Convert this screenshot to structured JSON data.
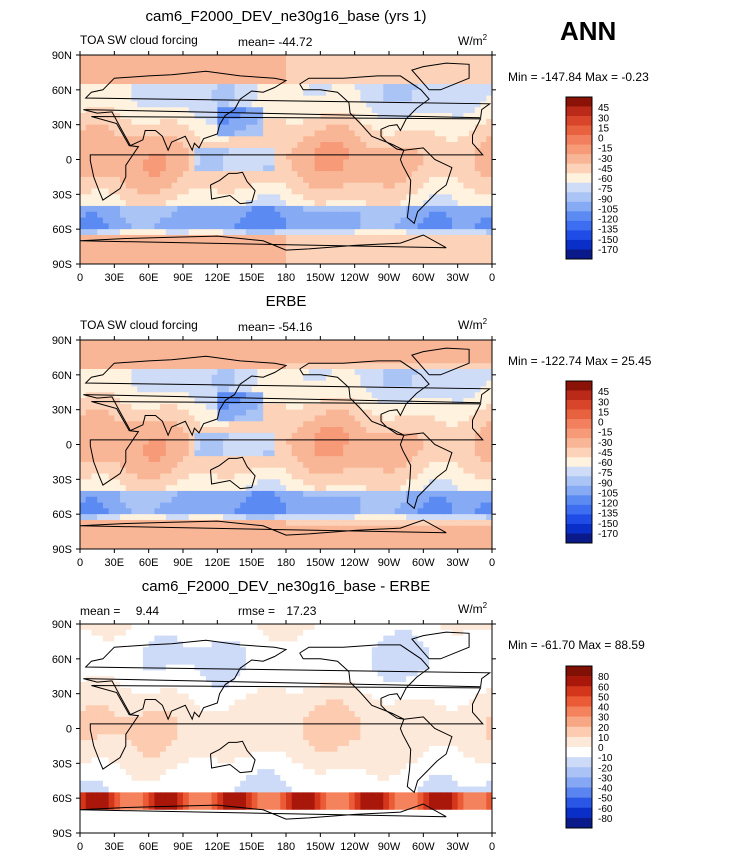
{
  "season": "ANN",
  "colors": {
    "land": "#000000",
    "frame": "#000000",
    "base_palette": [
      "#0a1a8a",
      "#0a2ec8",
      "#1f4ce6",
      "#3d6df0",
      "#5a8af2",
      "#86aaf4",
      "#aac4f6",
      "#cfdcf8",
      "#fff2de",
      "#fcd2b8",
      "#f9b696",
      "#f69a78",
      "#f27f5d",
      "#e8623f",
      "#d8452a",
      "#bb2a18",
      "#8a1207"
    ],
    "diff_palette": [
      "#0a1a8a",
      "#0a2ec8",
      "#2a56e6",
      "#5a84f0",
      "#86a8f4",
      "#aac2f6",
      "#cddbf8",
      "#ffffff",
      "#fde9d9",
      "#fccbb0",
      "#f8a784",
      "#f4825c",
      "#ea5b36",
      "#d4361c",
      "#a8170a",
      "#801004"
    ]
  },
  "panels": [
    {
      "title": "cam6_F2000_DEV_ne30g16_base (yrs 1)",
      "left_label": "TOA SW cloud forcing",
      "stat_label": "mean=",
      "stat_value": "-44.72",
      "units": "W/m",
      "units_sup": "2",
      "minmax": "Min = -147.84 Max =  -0.23",
      "colorbar_labels": [
        "45",
        "30",
        "15",
        "0",
        "-15",
        "-30",
        "-45",
        "-60",
        "-75",
        "-90",
        "-105",
        "-120",
        "-135",
        "-150",
        "-170"
      ]
    },
    {
      "title": "ERBE",
      "left_label": "TOA SW cloud forcing",
      "stat_label": "mean=",
      "stat_value": "-54.16",
      "units": "W/m",
      "units_sup": "2",
      "minmax": "Min = -122.74 Max =  25.45",
      "colorbar_labels": [
        "45",
        "30",
        "15",
        "0",
        "-15",
        "-30",
        "-45",
        "-60",
        "-75",
        "-90",
        "-105",
        "-120",
        "-135",
        "-150",
        "-170"
      ]
    },
    {
      "title": "cam6_F2000_DEV_ne30g16_base - ERBE",
      "left_label": "mean =",
      "left_value": "9.44",
      "stat_label": "rmse =",
      "stat_value": "17.23",
      "units": "W/m",
      "units_sup": "2",
      "minmax": "Min = -61.70 Max =  88.59",
      "colorbar_labels": [
        "80",
        "60",
        "50",
        "40",
        "30",
        "20",
        "10",
        "0",
        "-10",
        "-20",
        "-30",
        "-40",
        "-50",
        "-60",
        "-80"
      ]
    }
  ],
  "axes": {
    "lat_labels": [
      "90N",
      "60N",
      "30N",
      "0",
      "30S",
      "60S",
      "90S"
    ],
    "lon_labels": [
      "0",
      "30E",
      "60E",
      "90E",
      "120E",
      "150E",
      "180",
      "150W",
      "120W",
      "90W",
      "60W",
      "30W",
      "0"
    ]
  },
  "chart_data": [
    {
      "type": "heatmap",
      "title": "cam6_F2000_DEV_ne30g16_base (yrs 1)",
      "variable": "TOA SW cloud forcing",
      "units": "W/m2",
      "mean": -44.72,
      "min": -147.84,
      "max": -0.23,
      "xlim": [
        0,
        360
      ],
      "ylim": [
        -90,
        90
      ],
      "levels": [
        -170,
        -150,
        -135,
        -120,
        -105,
        -90,
        -75,
        -60,
        -45,
        -30,
        -15,
        0,
        15,
        30,
        45
      ]
    },
    {
      "type": "heatmap",
      "title": "ERBE",
      "variable": "TOA SW cloud forcing",
      "units": "W/m2",
      "mean": -54.16,
      "min": -122.74,
      "max": 25.45,
      "xlim": [
        0,
        360
      ],
      "ylim": [
        -90,
        90
      ],
      "levels": [
        -170,
        -150,
        -135,
        -120,
        -105,
        -90,
        -75,
        -60,
        -45,
        -30,
        -15,
        0,
        15,
        30,
        45
      ]
    },
    {
      "type": "heatmap",
      "title": "cam6_F2000_DEV_ne30g16_base - ERBE",
      "units": "W/m2",
      "mean": 9.44,
      "rmse": 17.23,
      "min": -61.7,
      "max": 88.59,
      "xlim": [
        0,
        360
      ],
      "ylim": [
        -90,
        90
      ],
      "levels": [
        -80,
        -60,
        -50,
        -40,
        -30,
        -20,
        -10,
        0,
        10,
        20,
        30,
        40,
        50,
        60,
        80
      ]
    }
  ]
}
